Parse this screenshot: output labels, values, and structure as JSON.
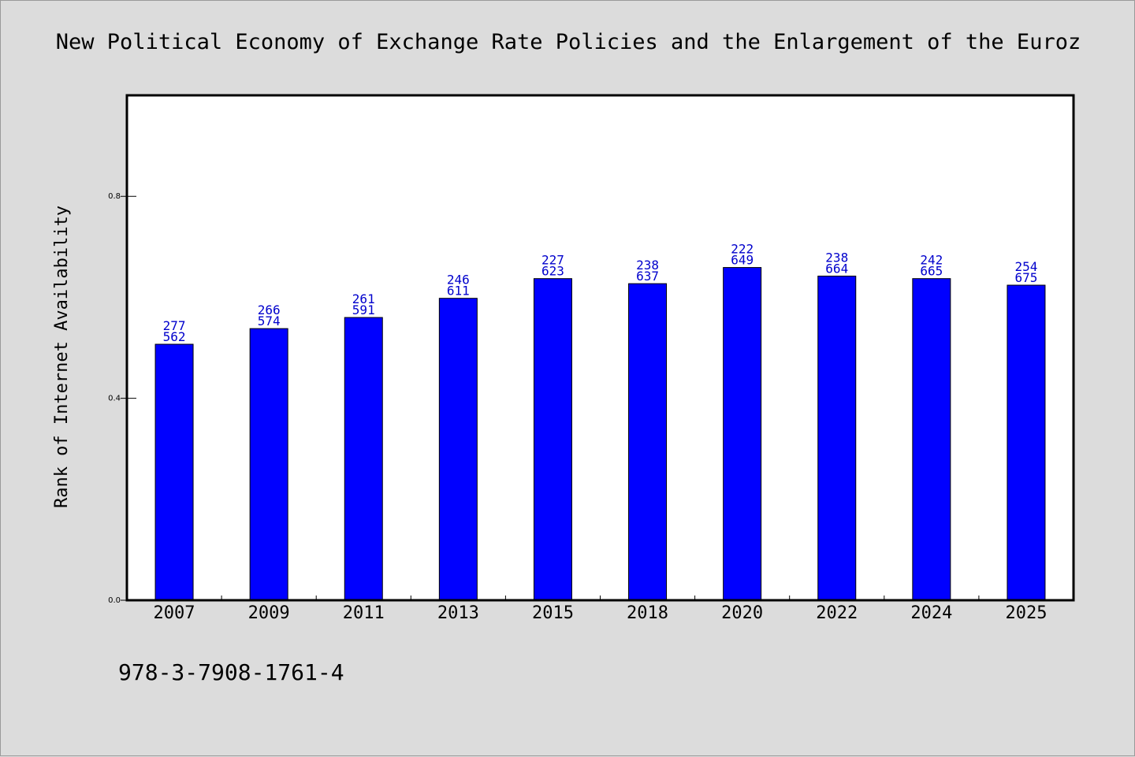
{
  "chart_data": {
    "type": "bar",
    "title": "New Political Economy of Exchange Rate Policies and the Enlargement of the Euroz",
    "xlabel": "",
    "ylabel": "Rank of Internet Availability",
    "ylim": [
      0.0,
      1.0
    ],
    "yticks": [
      {
        "value": 0.0,
        "label": "0.0"
      },
      {
        "value": 0.4,
        "label": "0.4"
      },
      {
        "value": 0.8,
        "label": "0.8"
      }
    ],
    "grid": false,
    "legend": "none",
    "bar_color": "#0000ff",
    "label_color": "#0000cc",
    "categories": [
      "2007",
      "2009",
      "2011",
      "2013",
      "2015",
      "2018",
      "2020",
      "2022",
      "2024",
      "2025"
    ],
    "values": [
      0.507,
      0.538,
      0.56,
      0.598,
      0.637,
      0.627,
      0.659,
      0.642,
      0.637,
      0.624
    ],
    "bar_labels": [
      [
        "277",
        "562"
      ],
      [
        "266",
        "574"
      ],
      [
        "261",
        "591"
      ],
      [
        "246",
        "611"
      ],
      [
        "227",
        "623"
      ],
      [
        "238",
        "637"
      ],
      [
        "222",
        "649"
      ],
      [
        "238",
        "664"
      ],
      [
        "242",
        "665"
      ],
      [
        "254",
        "675"
      ]
    ]
  },
  "footer": {
    "isbn": "978-3-7908-1761-4"
  }
}
